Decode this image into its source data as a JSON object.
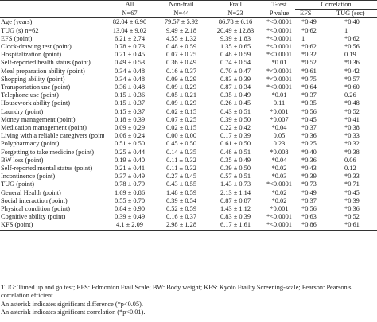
{
  "headers": {
    "row1": [
      "",
      "All",
      "Non-frail",
      "Frail",
      "T-test",
      "Correlation"
    ],
    "row2": [
      "",
      "N=67",
      "N=44",
      "N=23",
      "P value",
      "",
      "EFS",
      "TUG (sec)"
    ]
  },
  "rows": [
    {
      "label": "Age (years)",
      "all": "82.04 ± 6.90",
      "nonfrail": "79.57 ± 5.92",
      "frail": "86.78 ± 6.16",
      "p": "*<0.0001",
      "efs": "*0.49",
      "tug": "*0.40"
    },
    {
      "label": "TUG (s) n=62",
      "all": "13.04 ± 9.02",
      "nonfrail": "9.49 ± 2.18",
      "frail": "20.49 ± 12.83",
      "p": "*<0.0001",
      "efs": "*0.62",
      "tug": "1"
    },
    {
      "label": "EFS (point)",
      "all": "6.21 ± 2.74",
      "nonfrail": "4.55 ± 1.32",
      "frail": "9.39 ± 1.83",
      "p": "*<0.0001",
      "efs": "1",
      "tug": "*0.62"
    },
    {
      "label": "Clock-drawing test (point)",
      "all": "0.78 ± 0.73",
      "nonfrail": "0.48 ± 0.59",
      "frail": "1.35 ± 0.65",
      "p": "*<0.0001",
      "efs": "*0.62",
      "tug": "*0.56"
    },
    {
      "label": "Hospitalization (point)",
      "all": "0.21 ± 0.45",
      "nonfrail": "0.07 ± 0.25",
      "frail": "0.48 ± 0.59",
      "p": "*<0.0001",
      "efs": "*0.32",
      "tug": "0.19"
    },
    {
      "label": "Self-reported health status (point)",
      "all": "0.49 ± 0.53",
      "nonfrail": "0.36 ± 0.49",
      "frail": "0.74 ± 0.54",
      "p": "*0.01",
      "efs": "*0.52",
      "tug": "*0.36"
    },
    {
      "label": "Meal preparation ability (point)",
      "all": "0.34 ± 0.48",
      "nonfrail": "0.16 ± 0.37",
      "frail": "0.70 ± 0.47",
      "p": "*<0.0001",
      "efs": "*0.61",
      "tug": "*0.42"
    },
    {
      "label": "Shopping ability (point)",
      "all": "0.34 ± 0.48",
      "nonfrail": "0.09 ± 0.29",
      "frail": "0.83 ± 0.39",
      "p": "*<0.0001",
      "efs": "*0.75",
      "tug": "*0.57"
    },
    {
      "label": "Transportation use (point)",
      "all": "0.36 ± 0.48",
      "nonfrail": "0.09 ± 0.29",
      "frail": "0.87 ± 0.34",
      "p": "*<0.0001",
      "efs": "*0.64",
      "tug": "*0.60"
    },
    {
      "label": "Telephone use (point)",
      "all": "0.15 ± 0.36",
      "nonfrail": "0.05 ± 0.21",
      "frail": "0.35 ± 0.49",
      "p": "*0.01",
      "efs": "*0.37",
      "tug": "0.26"
    },
    {
      "label": "Housework ability (point)",
      "all": "0.15 ± 0.37",
      "nonfrail": "0.09 ± 0.29",
      "frail": "0.26 ± 0.45",
      "p": "0.11",
      "efs": "*0.35",
      "tug": "*0.48"
    },
    {
      "label": "Laundry (point)",
      "all": "0.15 ± 0.37",
      "nonfrail": "0.02 ± 0.15",
      "frail": "0.43 ± 0.51",
      "p": "*0.001",
      "efs": "*0.56",
      "tug": "*0.52"
    },
    {
      "label": "Money management (point)",
      "all": "0.18 ± 0.39",
      "nonfrail": "0.07 ± 0.25",
      "frail": "0.39 ± 0.50",
      "p": "*0.007",
      "efs": "*0.45",
      "tug": "*0.41"
    },
    {
      "label": "Medication management (point)",
      "all": "0.09 ± 0.29",
      "nonfrail": "0.02 ± 0.15",
      "frail": "0.22 ± 0.42",
      "p": "*0.04",
      "efs": "*0.37",
      "tug": "*0.38"
    },
    {
      "label": "Living with a reliable caregivers (point)",
      "all": "0.06 ± 0.24",
      "nonfrail": "0.00 ± 0.00",
      "frail": "0.17 ± 0.39",
      "p": "0.05",
      "efs": "*0.36",
      "tug": "*0.33"
    },
    {
      "label": "Polypharmacy (point)",
      "all": "0.51 ± 0.50",
      "nonfrail": "0.45 ± 0.50",
      "frail": "0.61 ± 0.50",
      "p": "0.23",
      "efs": "*0.25",
      "tug": "*0.32"
    },
    {
      "label": "Forgetting to take medicine (point)",
      "all": "0.25 ± 0.44",
      "nonfrail": "0.14 ± 0.35",
      "frail": "0.48 ± 0.51",
      "p": "*0.008",
      "efs": "*0.40",
      "tug": "*0.38"
    },
    {
      "label": "BW loss (point)",
      "all": "0.19 ± 0.40",
      "nonfrail": "0.11 ± 0.32",
      "frail": "0.35 ± 0.49",
      "p": "*0.04",
      "efs": "*0.36",
      "tug": "0.06"
    },
    {
      "label": "Self-reported mental status (point)",
      "all": "0.21 ± 0.41",
      "nonfrail": "0.11 ± 0.32",
      "frail": "0.39 ± 0.50",
      "p": "*0.02",
      "efs": "*0.43",
      "tug": "0.12"
    },
    {
      "label": "Incontinence (point)",
      "all": "0.37 ± 0.49",
      "nonfrail": "0.27 ± 0.45",
      "frail": "0.57 ± 0.51",
      "p": "*0.03",
      "efs": "*0.39",
      "tug": "*0.33"
    },
    {
      "label": "TUG (point)",
      "all": "0.78 ± 0.79",
      "nonfrail": "0.43 ± 0.55",
      "frail": "1.43 ± 0.73",
      "p": "*<0.0001",
      "efs": "*0.73",
      "tug": "*0.71"
    },
    {
      "label": "General Health (point)",
      "all": "1.69 ± 0.86",
      "nonfrail": "1.48 ± 0.59",
      "frail": "2.13 ± 1.14",
      "p": "*0.02",
      "efs": "*0.49",
      "tug": "*0.45"
    },
    {
      "label": "Social interaction (point)",
      "all": "0.55 ± 0.70",
      "nonfrail": "0.39 ± 0.54",
      "frail": "0.87 ± 0.87",
      "p": "*0.02",
      "efs": "*0.37",
      "tug": "*0.39"
    },
    {
      "label": "Physical condition (point)",
      "all": "0.84 ± 0.90",
      "nonfrail": "0.52 ± 0.59",
      "frail": "1.43 ± 1.12",
      "p": "*0.001",
      "efs": "*0.56",
      "tug": "*0.36"
    },
    {
      "label": "Cognitive ability (point)",
      "all": "0.39 ± 0.49",
      "nonfrail": "0.16 ± 0.37",
      "frail": "0.83 ± 0.39",
      "p": "*<0.0001",
      "efs": "*0.63",
      "tug": "*0.52"
    },
    {
      "label": "KFS (point)",
      "all": "4.1 ± 2.09",
      "nonfrail": "2.98 ± 1.28",
      "frail": "6.17 ± 1.61",
      "p": "*<0.0001",
      "efs": "*0.86",
      "tug": "*0.61"
    }
  ],
  "notes": {
    "line1": "TUG: Timed up and go test; EFS: Edmonton Frail Scale; BW: Body weight; KFS: Kyoto Frailty Screening-scale; Pearson: Pearson's correlation efficient.",
    "line2": "An asterisk indicates significant difference (*p<0.05).",
    "line3": "An asterisk indicates significant correlation (*p<0.01)."
  }
}
